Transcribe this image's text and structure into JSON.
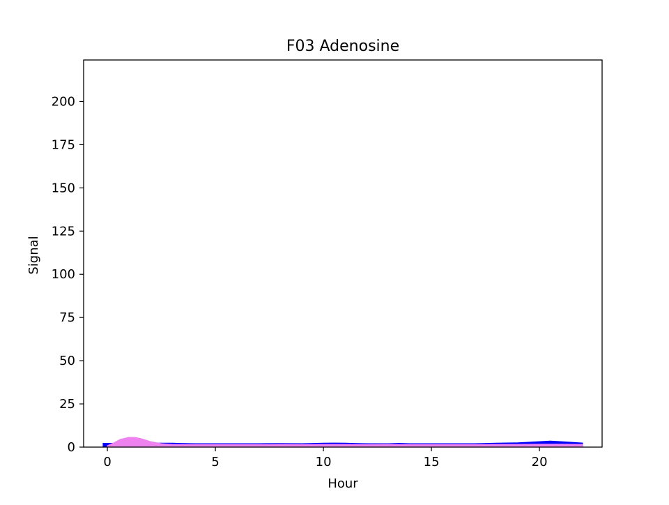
{
  "chart_data": {
    "type": "area",
    "title": "F03 Adenosine",
    "xlabel": "Hour",
    "ylabel": "Signal",
    "xlim": [
      -1.1,
      22.9
    ],
    "ylim": [
      0,
      224
    ],
    "xticks": [
      0,
      5,
      10,
      15,
      20
    ],
    "yticks": [
      0,
      25,
      50,
      75,
      100,
      125,
      150,
      175,
      200
    ],
    "grid": false,
    "legend": "none",
    "series": [
      {
        "color": "#0000ff",
        "x": [
          -0.2,
          0,
          0.5,
          1,
          1.5,
          2,
          2.5,
          3,
          4,
          5,
          6,
          7,
          8,
          9,
          10,
          10.5,
          11,
          12,
          13,
          13.5,
          14,
          15,
          16,
          17,
          18,
          19,
          20,
          20.5,
          21,
          22
        ],
        "values": [
          2.2,
          2.2,
          2.2,
          2.6,
          2.5,
          2.3,
          2.3,
          2.3,
          2.0,
          2.0,
          2.0,
          2.0,
          2.1,
          2.0,
          2.3,
          2.4,
          2.3,
          2.0,
          2.0,
          2.2,
          2.0,
          2.0,
          2.0,
          2.0,
          2.3,
          2.5,
          3.2,
          3.5,
          3.2,
          2.4
        ]
      },
      {
        "color": "#ee82ee",
        "x": [
          0,
          0.3,
          0.6,
          1,
          1.3,
          1.6,
          2,
          2.5,
          3,
          4,
          5,
          6,
          7,
          8,
          9,
          10,
          11,
          12,
          13,
          14,
          15,
          16,
          17,
          18,
          19,
          20,
          21,
          22
        ],
        "values": [
          0.8,
          2.5,
          4.5,
          5.7,
          5.6,
          4.8,
          3.2,
          2.0,
          1.6,
          1.5,
          1.5,
          1.5,
          1.5,
          1.6,
          1.5,
          1.6,
          1.6,
          1.5,
          1.6,
          1.5,
          1.5,
          1.5,
          1.5,
          1.6,
          1.6,
          1.7,
          1.7,
          1.6
        ]
      }
    ]
  }
}
